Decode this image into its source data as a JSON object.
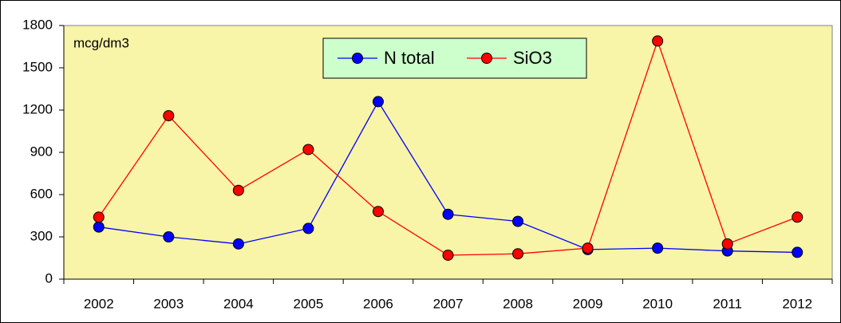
{
  "chart_data": {
    "type": "line",
    "annotation": "mcg/dm3",
    "categories": [
      "2002",
      "2003",
      "2004",
      "2005",
      "2006",
      "2007",
      "2008",
      "2009",
      "2010",
      "2011",
      "2012"
    ],
    "series": [
      {
        "name": "N total",
        "color": "#0000ff",
        "values": [
          370,
          300,
          250,
          360,
          1260,
          460,
          410,
          210,
          220,
          200,
          190
        ]
      },
      {
        "name": "SiO3",
        "color": "#ff0000",
        "values": [
          440,
          1160,
          630,
          920,
          480,
          170,
          180,
          220,
          1690,
          250,
          440
        ]
      }
    ],
    "ylim": [
      0,
      1800
    ],
    "yticks": [
      0,
      300,
      600,
      900,
      1200,
      1500,
      1800
    ],
    "grid": false,
    "legend": "top",
    "plot_color": "#f8f4a8",
    "legend_color": "#ccffcc"
  }
}
